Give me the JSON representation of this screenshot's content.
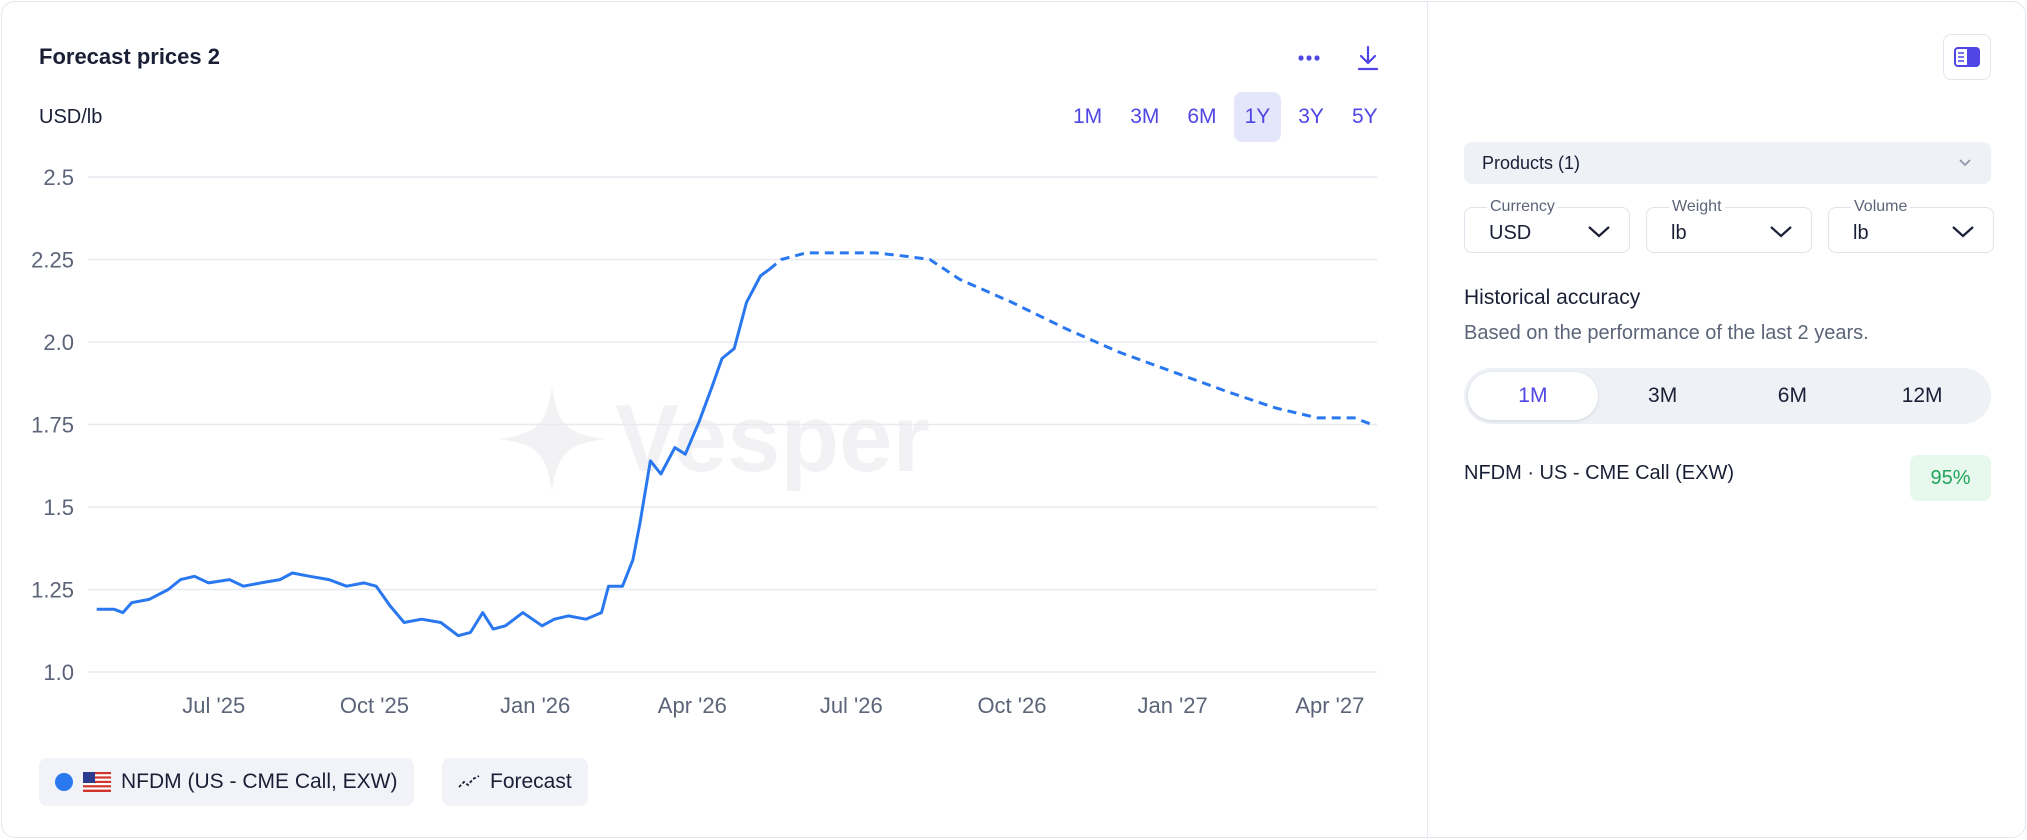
{
  "header": {
    "title": "Forecast prices 2"
  },
  "toolbar": {
    "more_icon": "more-horizontal-icon",
    "download_icon": "download-icon"
  },
  "chart_header": {
    "unit": "USD/lb"
  },
  "range_tabs": [
    {
      "label": "1M",
      "active": false
    },
    {
      "label": "3M",
      "active": false
    },
    {
      "label": "6M",
      "active": false
    },
    {
      "label": "1Y",
      "active": true
    },
    {
      "label": "3Y",
      "active": false
    },
    {
      "label": "5Y",
      "active": false
    }
  ],
  "watermark": {
    "text": "Vesper"
  },
  "legend": {
    "series_label": "NFDM (US - CME Call, EXW)",
    "forecast_label": "Forecast"
  },
  "colors": {
    "accent": "#4f46e5",
    "series": "#2a78f0",
    "positive": "#22a45d"
  },
  "chart_data": {
    "type": "line",
    "ylabel": "USD/lb",
    "ylim": [
      1.0,
      2.5
    ],
    "y_ticks": [
      "2.5",
      "2.25",
      "2.0",
      "1.75",
      "1.5",
      "1.25",
      "1.0"
    ],
    "x_ticks": [
      "Jul '25",
      "Oct '25",
      "Jan '26",
      "Apr '26",
      "Jul '26",
      "Oct '26",
      "Jan '27",
      "Apr '27"
    ],
    "grid": true,
    "series": [
      {
        "name": "NFDM (US - CME Call, EXW)",
        "style": "solid",
        "points": [
          [
            "2025-04-25",
            1.19
          ],
          [
            "2025-05-05",
            1.19
          ],
          [
            "2025-05-10",
            1.18
          ],
          [
            "2025-05-15",
            1.21
          ],
          [
            "2025-05-25",
            1.22
          ],
          [
            "2025-06-05",
            1.25
          ],
          [
            "2025-06-12",
            1.28
          ],
          [
            "2025-06-20",
            1.29
          ],
          [
            "2025-06-28",
            1.27
          ],
          [
            "2025-07-10",
            1.28
          ],
          [
            "2025-07-18",
            1.26
          ],
          [
            "2025-07-28",
            1.27
          ],
          [
            "2025-08-08",
            1.28
          ],
          [
            "2025-08-15",
            1.3
          ],
          [
            "2025-08-25",
            1.29
          ],
          [
            "2025-09-05",
            1.28
          ],
          [
            "2025-09-15",
            1.26
          ],
          [
            "2025-09-25",
            1.27
          ],
          [
            "2025-10-02",
            1.26
          ],
          [
            "2025-10-10",
            1.2
          ],
          [
            "2025-10-18",
            1.15
          ],
          [
            "2025-10-28",
            1.16
          ],
          [
            "2025-11-08",
            1.15
          ],
          [
            "2025-11-18",
            1.11
          ],
          [
            "2025-11-25",
            1.12
          ],
          [
            "2025-12-02",
            1.18
          ],
          [
            "2025-12-08",
            1.13
          ],
          [
            "2025-12-15",
            1.14
          ],
          [
            "2025-12-25",
            1.18
          ],
          [
            "2026-01-05",
            1.14
          ],
          [
            "2026-01-12",
            1.16
          ],
          [
            "2026-01-20",
            1.17
          ],
          [
            "2026-01-30",
            1.16
          ],
          [
            "2026-02-08",
            1.18
          ],
          [
            "2026-02-12",
            1.26
          ],
          [
            "2026-02-20",
            1.26
          ],
          [
            "2026-02-26",
            1.34
          ],
          [
            "2026-03-02",
            1.45
          ],
          [
            "2026-03-08",
            1.64
          ],
          [
            "2026-03-14",
            1.6
          ],
          [
            "2026-03-22",
            1.68
          ],
          [
            "2026-03-28",
            1.66
          ],
          [
            "2026-04-05",
            1.76
          ],
          [
            "2026-04-12",
            1.86
          ],
          [
            "2026-04-18",
            1.95
          ],
          [
            "2026-04-25",
            1.98
          ],
          [
            "2026-05-02",
            2.12
          ],
          [
            "2026-05-10",
            2.2
          ],
          [
            "2026-05-15",
            2.22
          ]
        ]
      },
      {
        "name": "Forecast",
        "style": "dashed",
        "points": [
          [
            "2026-05-15",
            2.22
          ],
          [
            "2026-05-22",
            2.25
          ],
          [
            "2026-06-05",
            2.27
          ],
          [
            "2026-06-25",
            2.27
          ],
          [
            "2026-07-15",
            2.27
          ],
          [
            "2026-08-01",
            2.26
          ],
          [
            "2026-08-15",
            2.25
          ],
          [
            "2026-09-01",
            2.19
          ],
          [
            "2026-10-01",
            2.12
          ],
          [
            "2026-11-01",
            2.04
          ],
          [
            "2026-12-01",
            1.97
          ],
          [
            "2027-01-01",
            1.91
          ],
          [
            "2027-02-01",
            1.85
          ],
          [
            "2027-03-01",
            1.8
          ],
          [
            "2027-03-25",
            1.77
          ],
          [
            "2027-04-15",
            1.77
          ],
          [
            "2027-04-25",
            1.75
          ]
        ]
      }
    ]
  },
  "right_panel": {
    "toggle_icon": "panel-layout-icon",
    "products_select": {
      "label": "Products (1)"
    },
    "fields": [
      {
        "label": "Currency",
        "value": "USD"
      },
      {
        "label": "Weight",
        "value": "lb"
      },
      {
        "label": "Volume",
        "value": "lb"
      }
    ],
    "historical_accuracy": {
      "title": "Historical accuracy",
      "subtitle": "Based on the performance of the last 2 years.",
      "tabs": [
        {
          "label": "1M",
          "active": true
        },
        {
          "label": "3M",
          "active": false
        },
        {
          "label": "6M",
          "active": false
        },
        {
          "label": "12M",
          "active": false
        }
      ],
      "rows": [
        {
          "product": "NFDM · US - CME Call (EXW)",
          "accuracy": "95%"
        }
      ]
    }
  }
}
